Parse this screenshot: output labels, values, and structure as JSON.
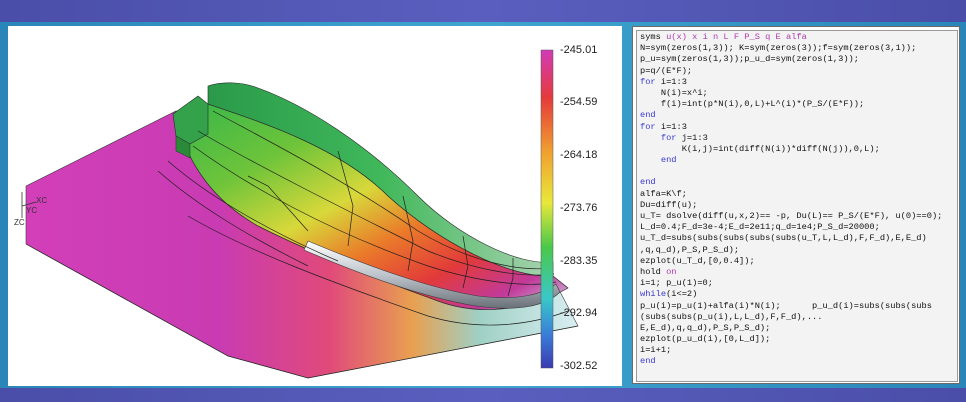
{
  "viewport": {
    "legend_labels": [
      "-245.01",
      "-254.59",
      "-264.18",
      "-273.76",
      "-283.35",
      "-292.94",
      "-302.52"
    ],
    "axis_labels": {
      "xc": "XC",
      "yc": "YC",
      "zc": "ZC"
    }
  },
  "code": {
    "lines": [
      {
        "parts": [
          {
            "t": "syms ",
            "c": ""
          },
          {
            "t": "u(x) x i n L F P_S q E alfa",
            "c": "sym"
          }
        ]
      },
      {
        "parts": [
          {
            "t": "N=sym(zeros(1,3)); K=sym(zeros(3));f=sym(zeros(3,1));",
            "c": ""
          }
        ]
      },
      {
        "parts": [
          {
            "t": "p_u=sym(zeros(1,3));p_u_d=sym(zeros(1,3));",
            "c": ""
          }
        ]
      },
      {
        "parts": [
          {
            "t": "p=q/(E*F);",
            "c": ""
          }
        ]
      },
      {
        "parts": [
          {
            "t": "for ",
            "c": "kw"
          },
          {
            "t": "i=1:3",
            "c": ""
          }
        ]
      },
      {
        "parts": [
          {
            "t": "    N(i)=x^i;",
            "c": ""
          }
        ]
      },
      {
        "parts": [
          {
            "t": "    f(i)=int(p*N(i),0,L)+L^(i)*(P_S/(E*F));",
            "c": ""
          }
        ]
      },
      {
        "parts": [
          {
            "t": "end",
            "c": "kw"
          }
        ]
      },
      {
        "parts": [
          {
            "t": "for ",
            "c": "kw"
          },
          {
            "t": "i=1:3",
            "c": ""
          }
        ]
      },
      {
        "parts": [
          {
            "t": "    for ",
            "c": "kw"
          },
          {
            "t": "j=1:3",
            "c": ""
          }
        ]
      },
      {
        "parts": [
          {
            "t": "        K(i,j)=int(diff(N(i))*diff(N(j)),0,L);",
            "c": ""
          }
        ]
      },
      {
        "parts": [
          {
            "t": "    end",
            "c": "kw"
          }
        ]
      },
      {
        "parts": [
          {
            "t": "",
            "c": ""
          }
        ]
      },
      {
        "parts": [
          {
            "t": "end",
            "c": "kw"
          }
        ]
      },
      {
        "parts": [
          {
            "t": "alfa=K\\f;",
            "c": ""
          }
        ]
      },
      {
        "parts": [
          {
            "t": "Du=diff(u);",
            "c": ""
          }
        ]
      },
      {
        "parts": [
          {
            "t": "u_T= dsolve(diff(u,x,2)== -p, Du(L)== P_S/(E*F), u(0)==0);",
            "c": ""
          }
        ]
      },
      {
        "parts": [
          {
            "t": "L_d=0.4;F_d=3e-4;E_d=2e11;q_d=1e4;P_S_d=20000;",
            "c": ""
          }
        ]
      },
      {
        "parts": [
          {
            "t": "u_T_d=subs(subs(subs(subs(subs(u_T,L,L_d),F,F_d),E,E_d)",
            "c": ""
          }
        ]
      },
      {
        "parts": [
          {
            "t": ",q,q_d),P_S,P_S_d);",
            "c": ""
          }
        ]
      },
      {
        "parts": [
          {
            "t": "ezplot(u_T_d,[0,0.4]);",
            "c": ""
          }
        ]
      },
      {
        "parts": [
          {
            "t": "hold ",
            "c": ""
          },
          {
            "t": "on",
            "c": "sym"
          }
        ]
      },
      {
        "parts": [
          {
            "t": "i=1; p_u(1)=0;",
            "c": ""
          }
        ]
      },
      {
        "parts": [
          {
            "t": "while",
            "c": "kw"
          },
          {
            "t": "(i<=2)",
            "c": ""
          }
        ]
      },
      {
        "parts": [
          {
            "t": "p_u(i)=p_u(1)+alfa(i)*N(i);      p_u_d(i)=subs(subs(subs",
            "c": ""
          }
        ]
      },
      {
        "parts": [
          {
            "t": "(subs(subs(p_u(i),L,L_d),F,F_d),...",
            "c": ""
          }
        ]
      },
      {
        "parts": [
          {
            "t": "E,E_d),q,q_d),P_S,P_S_d);",
            "c": ""
          }
        ]
      },
      {
        "parts": [
          {
            "t": "ezplot(p_u_d(i),[0,L_d]);",
            "c": ""
          }
        ]
      },
      {
        "parts": [
          {
            "t": "i=i+1;",
            "c": ""
          }
        ]
      },
      {
        "parts": [
          {
            "t": "end",
            "c": "kw"
          }
        ]
      }
    ]
  }
}
